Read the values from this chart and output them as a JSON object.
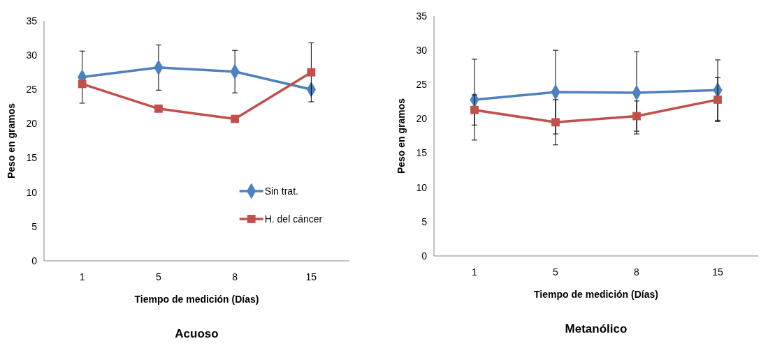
{
  "chart_data": [
    {
      "type": "line",
      "title": "Acuoso",
      "xlabel": "Tiempo de medición (Días)",
      "ylabel": "Peso en gramos",
      "categories": [
        "1",
        "5",
        "8",
        "15"
      ],
      "ylim": [
        0,
        35
      ],
      "yticks": [
        0,
        5,
        10,
        15,
        20,
        25,
        30,
        35
      ],
      "grid": false,
      "legend": "bottom right",
      "series": [
        {
          "name": "Sin trat.",
          "color": "#4f81bd",
          "marker": "diamond",
          "values": [
            26.8,
            28.2,
            27.6,
            25.0
          ],
          "errors": [
            3.8,
            3.3,
            3.1,
            null
          ]
        },
        {
          "name": "H. del cáncer",
          "color": "#c0504d",
          "marker": "square",
          "values": [
            25.8,
            22.2,
            20.7,
            27.5
          ],
          "errors": [
            null,
            null,
            null,
            4.3
          ]
        }
      ]
    },
    {
      "type": "line",
      "title": "Metanólico",
      "xlabel": "Tiempo de medición (Días)",
      "ylabel": "Peso en gramos",
      "categories": [
        "1",
        "5",
        "8",
        "15"
      ],
      "ylim": [
        0,
        35
      ],
      "yticks": [
        0,
        5,
        10,
        15,
        20,
        25,
        30,
        35
      ],
      "grid": false,
      "legend": false,
      "series": [
        {
          "color": "#4f81bd",
          "marker": "diamond",
          "values": [
            22.8,
            23.9,
            23.8,
            24.2
          ],
          "errors": [
            5.9,
            6.1,
            6.0,
            4.4
          ]
        },
        {
          "color": "#c0504d",
          "marker": "square",
          "values": [
            21.3,
            19.5,
            20.4,
            22.8
          ],
          "errors": [
            2.2,
            3.3,
            2.2,
            3.2
          ]
        }
      ]
    }
  ]
}
